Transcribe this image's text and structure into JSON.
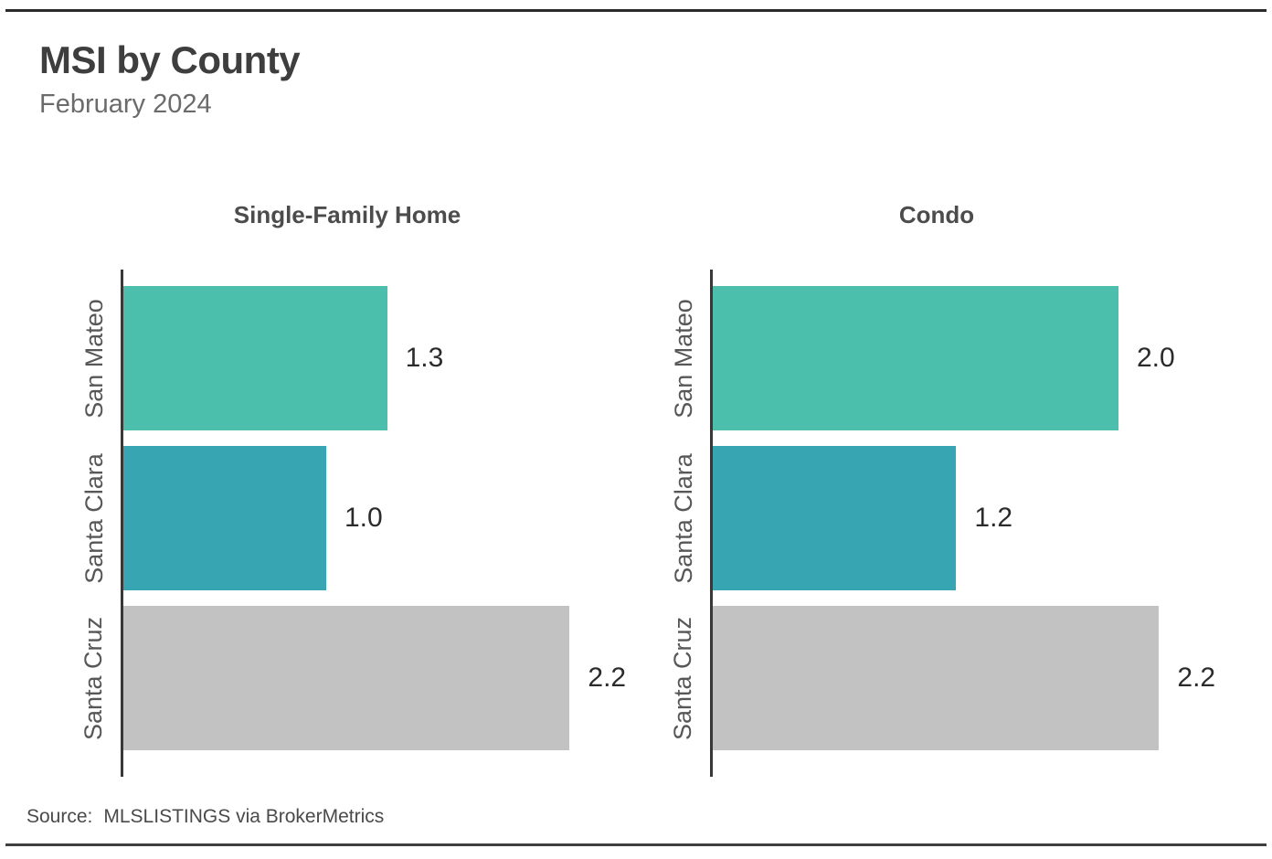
{
  "header": {
    "title": "MSI by County",
    "subtitle": "February 2024"
  },
  "source": {
    "label": "Source:",
    "text": "MLSLISTINGS via BrokerMetrics"
  },
  "colors": {
    "san_mateo_bar": "#4cbfac",
    "santa_clara_bar": "#38a5b2",
    "santa_cruz_bar": "#c2c2c2",
    "axis": "#383838",
    "rule": "#2b2b2b"
  },
  "chart_data": [
    {
      "type": "bar",
      "orientation": "horizontal",
      "title": "Single-Family Home",
      "categories": [
        "San Mateo",
        "Santa Clara",
        "Santa Cruz"
      ],
      "values": [
        1.3,
        1.0,
        2.2
      ],
      "value_labels": [
        "1.3",
        "1.0",
        "2.2"
      ],
      "bar_colors": [
        "#4cbfac",
        "#38a5b2",
        "#c2c2c2"
      ],
      "xlim": [
        0,
        2.5
      ],
      "grid": false,
      "legend": "none"
    },
    {
      "type": "bar",
      "orientation": "horizontal",
      "title": "Condo",
      "categories": [
        "San Mateo",
        "Santa Clara",
        "Santa Cruz"
      ],
      "values": [
        2.0,
        1.2,
        2.2
      ],
      "value_labels": [
        "2.0",
        "1.2",
        "2.2"
      ],
      "bar_colors": [
        "#4cbfac",
        "#38a5b2",
        "#c2c2c2"
      ],
      "xlim": [
        0,
        2.5
      ],
      "grid": false,
      "legend": "none"
    }
  ]
}
